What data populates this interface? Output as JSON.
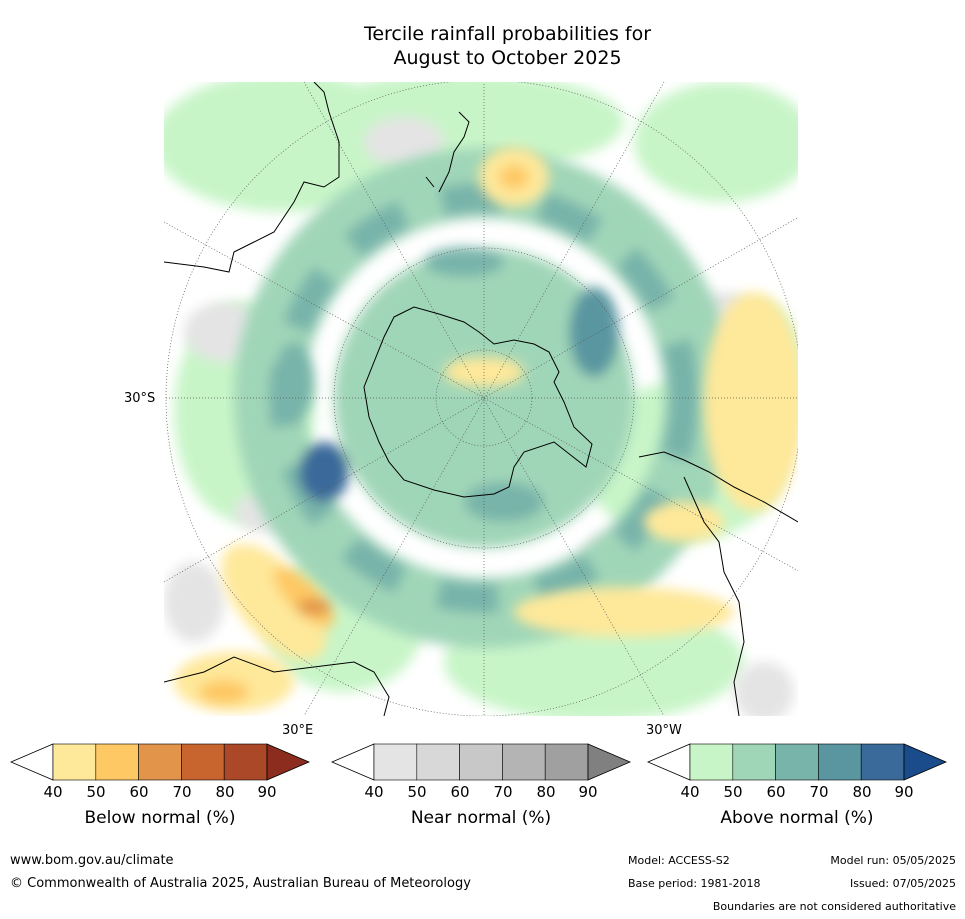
{
  "title_line1": "Tercile rainfall probabilities for",
  "title_line2": "August to October 2025",
  "map": {
    "projection": "south-polar-stereographic",
    "lat_label": "30°S",
    "lon_label_east": "30°E",
    "lon_label_west": "30°W"
  },
  "colorbars": [
    {
      "title": "Below normal (%)",
      "ticks": [
        "40",
        "50",
        "60",
        "70",
        "80",
        "90"
      ],
      "colors": [
        "#ffffff",
        "#fee89a",
        "#fec864",
        "#e1944a",
        "#c8642e",
        "#aa4828",
        "#8c2c1e"
      ]
    },
    {
      "title": "Near normal (%)",
      "ticks": [
        "40",
        "50",
        "60",
        "70",
        "80",
        "90"
      ],
      "colors": [
        "#ffffff",
        "#e4e4e4",
        "#d8d8d8",
        "#c8c8c8",
        "#b4b4b4",
        "#a0a0a0",
        "#808080"
      ]
    },
    {
      "title": "Above normal (%)",
      "ticks": [
        "40",
        "50",
        "60",
        "70",
        "80",
        "90"
      ],
      "colors": [
        "#ffffff",
        "#c8f5c8",
        "#a0d6b8",
        "#78b4aa",
        "#5a96a0",
        "#3a6a9a",
        "#1a4c8c"
      ]
    }
  ],
  "footer": {
    "url": "www.bom.gov.au/climate",
    "copyright": "© Commonwealth of Australia 2025, Australian Bureau of Meteorology",
    "model": "Model: ACCESS-S2",
    "base_period": "Base period: 1981-2018",
    "model_run": "Model run: 05/05/2025",
    "issued": "Issued: 07/05/2025",
    "disclaimer": "Boundaries are not considered authoritative"
  }
}
